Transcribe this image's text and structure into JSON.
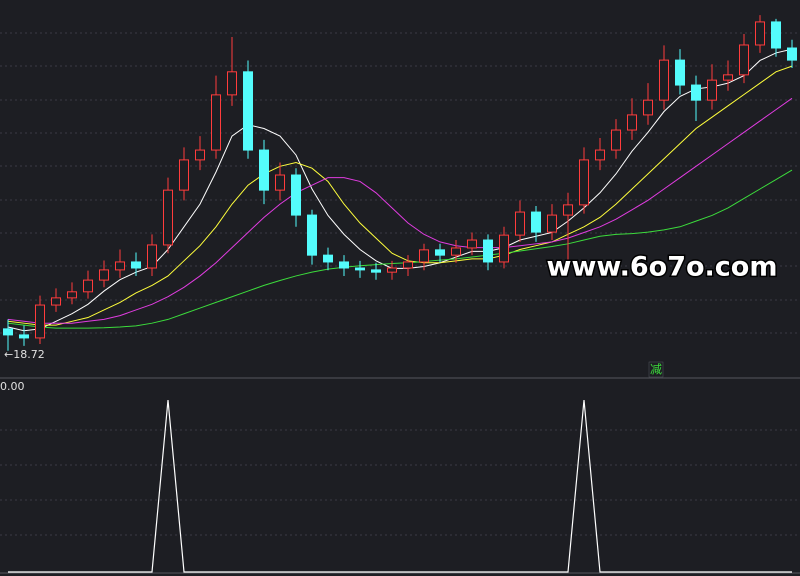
{
  "chart_data": [
    {
      "type": "candlestick",
      "ylim": [
        18,
        28
      ],
      "up_color": "#ff3c3c",
      "down_color": "#54fcfc",
      "open": [
        19.3,
        19.14,
        19.06,
        19.93,
        20.12,
        20.28,
        20.59,
        20.86,
        21.07,
        20.91,
        21.52,
        22.97,
        23.77,
        24.03,
        25.49,
        26.1,
        24.03,
        22.97,
        23.37,
        22.31,
        21.25,
        21.07,
        20.91,
        20.86,
        20.8,
        20.91,
        21.07,
        21.39,
        21.25,
        21.44,
        21.65,
        21.07,
        21.78,
        22.39,
        21.86,
        22.31,
        22.58,
        23.77,
        24.03,
        24.56,
        24.96,
        25.35,
        26.41,
        25.75,
        25.35,
        25.88,
        26.02,
        26.81,
        27.42,
        26.73
      ],
      "high": [
        19.55,
        19.39,
        20.18,
        20.37,
        20.53,
        20.84,
        21.11,
        21.4,
        21.32,
        21.8,
        23.3,
        24.1,
        24.4,
        26.0,
        27.02,
        26.4,
        24.3,
        23.7,
        23.55,
        22.45,
        21.45,
        21.25,
        21.1,
        21.05,
        21.1,
        21.25,
        21.55,
        21.55,
        21.65,
        21.85,
        21.8,
        22.0,
        22.7,
        22.55,
        22.6,
        22.9,
        24.1,
        24.35,
        24.85,
        25.4,
        25.8,
        26.8,
        26.7,
        26.0,
        26.3,
        26.4,
        27.1,
        27.6,
        27.5,
        26.95
      ],
      "low": [
        18.72,
        18.85,
        18.9,
        19.75,
        19.95,
        20.1,
        20.4,
        20.65,
        20.7,
        20.7,
        21.3,
        22.7,
        23.5,
        23.8,
        25.2,
        23.8,
        22.6,
        22.7,
        22.0,
        21.0,
        20.85,
        20.7,
        20.65,
        20.6,
        20.6,
        20.7,
        20.85,
        21.05,
        21.05,
        21.25,
        20.85,
        20.9,
        21.6,
        21.6,
        21.65,
        21.1,
        22.35,
        23.5,
        23.8,
        24.3,
        24.7,
        25.1,
        25.5,
        24.8,
        25.1,
        25.6,
        25.8,
        26.6,
        26.5,
        26.2
      ],
      "close": [
        19.14,
        19.06,
        19.93,
        20.12,
        20.28,
        20.59,
        20.86,
        21.07,
        20.91,
        21.52,
        22.97,
        23.77,
        24.03,
        25.49,
        26.1,
        24.03,
        22.97,
        23.37,
        22.31,
        21.25,
        21.07,
        20.91,
        20.86,
        20.8,
        20.91,
        21.07,
        21.39,
        21.25,
        21.44,
        21.65,
        21.07,
        21.78,
        22.39,
        21.86,
        22.31,
        22.58,
        23.77,
        24.03,
        24.56,
        24.96,
        25.35,
        26.41,
        25.75,
        25.35,
        25.88,
        26.02,
        26.81,
        27.42,
        26.73,
        26.41
      ],
      "series": [
        {
          "color": "#ffffff",
          "values": [
            19.35,
            19.25,
            19.3,
            19.5,
            19.7,
            19.95,
            20.3,
            20.6,
            20.8,
            20.95,
            21.4,
            22.0,
            22.6,
            23.45,
            24.4,
            24.7,
            24.6,
            24.4,
            23.9,
            23.0,
            22.3,
            21.8,
            21.4,
            21.1,
            20.9,
            20.9,
            20.95,
            21.05,
            21.2,
            21.35,
            21.35,
            21.45,
            21.65,
            21.75,
            21.85,
            22.15,
            22.5,
            22.9,
            23.4,
            24.0,
            24.5,
            25.05,
            25.45,
            25.65,
            25.7,
            25.8,
            26.0,
            26.4,
            26.6,
            26.7
          ]
        },
        {
          "color": "#ffff3c",
          "values": [
            19.5,
            19.45,
            19.4,
            19.4,
            19.5,
            19.6,
            19.8,
            20.0,
            20.25,
            20.45,
            20.7,
            21.1,
            21.5,
            22.0,
            22.6,
            23.1,
            23.4,
            23.6,
            23.7,
            23.55,
            23.2,
            22.6,
            22.1,
            21.7,
            21.3,
            21.1,
            21.05,
            21.05,
            21.1,
            21.15,
            21.15,
            21.25,
            21.4,
            21.5,
            21.6,
            21.8,
            22.0,
            22.25,
            22.6,
            23.0,
            23.4,
            23.8,
            24.2,
            24.6,
            24.9,
            25.2,
            25.5,
            25.8,
            26.1,
            26.25
          ]
        },
        {
          "color": "#e03ce0",
          "values": [
            19.55,
            19.5,
            19.45,
            19.45,
            19.45,
            19.5,
            19.55,
            19.65,
            19.8,
            19.95,
            20.15,
            20.4,
            20.7,
            21.05,
            21.45,
            21.85,
            22.25,
            22.6,
            22.9,
            23.1,
            23.3,
            23.3,
            23.2,
            22.9,
            22.5,
            22.1,
            21.8,
            21.6,
            21.5,
            21.45,
            21.45,
            21.45,
            21.5,
            21.55,
            21.6,
            21.7,
            21.85,
            22.0,
            22.2,
            22.45,
            22.7,
            23.0,
            23.3,
            23.6,
            23.9,
            24.2,
            24.5,
            24.8,
            25.1,
            25.4
          ]
        },
        {
          "color": "#3cdc3c",
          "values": [
            19.45,
            19.4,
            19.35,
            19.32,
            19.32,
            19.32,
            19.33,
            19.35,
            19.38,
            19.45,
            19.55,
            19.7,
            19.85,
            20.0,
            20.15,
            20.3,
            20.45,
            20.58,
            20.7,
            20.8,
            20.88,
            20.93,
            20.97,
            21.0,
            21.03,
            21.05,
            21.08,
            21.12,
            21.15,
            21.2,
            21.25,
            21.3,
            21.36,
            21.42,
            21.48,
            21.55,
            21.65,
            21.75,
            21.8,
            21.82,
            21.86,
            21.92,
            22.0,
            22.15,
            22.3,
            22.5,
            22.75,
            23.0,
            23.25,
            23.5
          ]
        }
      ],
      "low_marker": {
        "value": 18.72,
        "label": "←18.72"
      },
      "signal": {
        "index": 41,
        "label": "减",
        "color": "#3cdc3c"
      },
      "watermark": "www.6o7o.com"
    },
    {
      "type": "line",
      "label": "0.00",
      "color": "#ffffff",
      "ylim": [
        0,
        1
      ],
      "values": [
        0,
        0,
        0,
        0,
        0,
        0,
        0,
        0,
        0,
        0,
        1,
        0,
        0,
        0,
        0,
        0,
        0,
        0,
        0,
        0,
        0,
        0,
        0,
        0,
        0,
        0,
        0,
        0,
        0,
        0,
        0,
        0,
        0,
        0,
        0,
        0,
        1,
        0,
        0,
        0,
        0,
        0,
        0,
        0,
        0,
        0,
        0,
        0,
        0,
        0
      ]
    }
  ]
}
